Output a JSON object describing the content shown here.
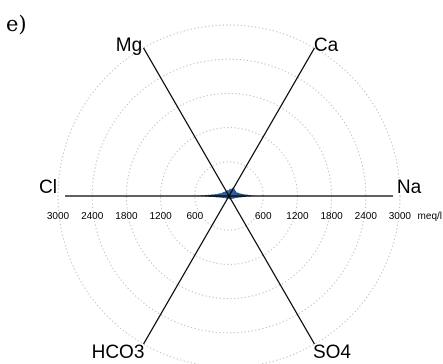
{
  "panel_label": "e)",
  "chart_data": {
    "type": "radar",
    "axes": [
      "Ca",
      "Na",
      "SO4",
      "HCO3",
      "Cl",
      "Mg"
    ],
    "cation_axes": [
      "Ca",
      "Na",
      "Mg"
    ],
    "anion_axes": [
      "SO4",
      "HCO3",
      "Cl"
    ],
    "unit": "meq/l",
    "rlim": [
      0,
      3000
    ],
    "rings": [
      600,
      1200,
      1800,
      2400,
      3000
    ],
    "ticks_left": [
      "3000",
      "2400",
      "1800",
      "1200",
      "600"
    ],
    "ticks_right": [
      "600",
      "1200",
      "1800",
      "2400",
      "3000"
    ],
    "grid": true,
    "fill_color": "#2e5f9e",
    "profiles": [
      {
        "Ca": 60,
        "Na": 480,
        "SO4": 30,
        "HCO3": 25,
        "Cl": 620,
        "Mg": 40
      },
      {
        "Ca": 90,
        "Na": 360,
        "SO4": 45,
        "HCO3": 35,
        "Cl": 460,
        "Mg": 55
      },
      {
        "Ca": 110,
        "Na": 280,
        "SO4": 55,
        "HCO3": 40,
        "Cl": 380,
        "Mg": 70
      },
      {
        "Ca": 140,
        "Na": 200,
        "SO4": 60,
        "HCO3": 45,
        "Cl": 300,
        "Mg": 85
      },
      {
        "Ca": 170,
        "Na": 140,
        "SO4": 65,
        "HCO3": 50,
        "Cl": 220,
        "Mg": 100
      }
    ]
  }
}
